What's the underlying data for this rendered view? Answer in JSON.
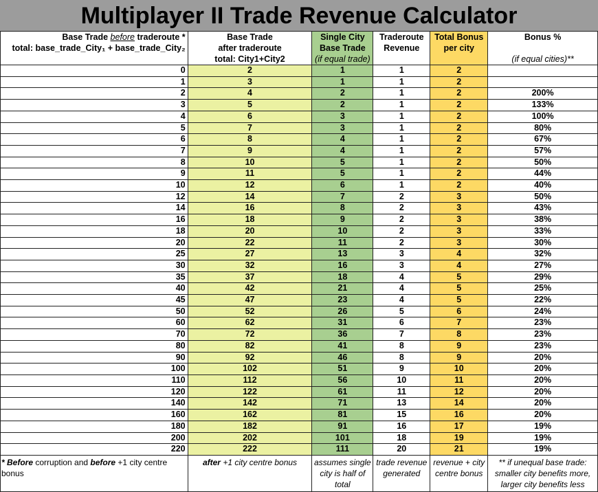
{
  "title": "Multiplayer II Trade Revenue Calculator",
  "headers": {
    "base_before": {
      "pre": "Base Trade ",
      "em": "before",
      "post": " traderoute *",
      "line2": "total: base_trade_City₁ + base_trade_City₂"
    },
    "base_after": {
      "line1": "Base Trade",
      "line2": "after traderoute",
      "line3": "total: City1+City2"
    },
    "single_city": {
      "line1": "Single City",
      "line2": "Base Trade",
      "line3": "(if equal trade)"
    },
    "traderoute_revenue": {
      "line1": "Traderoute",
      "line2": "Revenue"
    },
    "total_bonus": {
      "line1": "Total Bonus",
      "line2": "per city"
    },
    "bonus_pct": {
      "line1": "Bonus %",
      "line2": "(if equal cities)**"
    }
  },
  "rows": [
    [
      "0",
      "2",
      "1",
      "1",
      "2",
      ""
    ],
    [
      "1",
      "3",
      "1",
      "1",
      "2",
      ""
    ],
    [
      "2",
      "4",
      "2",
      "1",
      "2",
      "200%"
    ],
    [
      "3",
      "5",
      "2",
      "1",
      "2",
      "133%"
    ],
    [
      "4",
      "6",
      "3",
      "1",
      "2",
      "100%"
    ],
    [
      "5",
      "7",
      "3",
      "1",
      "2",
      "80%"
    ],
    [
      "6",
      "8",
      "4",
      "1",
      "2",
      "67%"
    ],
    [
      "7",
      "9",
      "4",
      "1",
      "2",
      "57%"
    ],
    [
      "8",
      "10",
      "5",
      "1",
      "2",
      "50%"
    ],
    [
      "9",
      "11",
      "5",
      "1",
      "2",
      "44%"
    ],
    [
      "10",
      "12",
      "6",
      "1",
      "2",
      "40%"
    ],
    [
      "12",
      "14",
      "7",
      "2",
      "3",
      "50%"
    ],
    [
      "14",
      "16",
      "8",
      "2",
      "3",
      "43%"
    ],
    [
      "16",
      "18",
      "9",
      "2",
      "3",
      "38%"
    ],
    [
      "18",
      "20",
      "10",
      "2",
      "3",
      "33%"
    ],
    [
      "20",
      "22",
      "11",
      "2",
      "3",
      "30%"
    ],
    [
      "25",
      "27",
      "13",
      "3",
      "4",
      "32%"
    ],
    [
      "30",
      "32",
      "16",
      "3",
      "4",
      "27%"
    ],
    [
      "35",
      "37",
      "18",
      "4",
      "5",
      "29%"
    ],
    [
      "40",
      "42",
      "21",
      "4",
      "5",
      "25%"
    ],
    [
      "45",
      "47",
      "23",
      "4",
      "5",
      "22%"
    ],
    [
      "50",
      "52",
      "26",
      "5",
      "6",
      "24%"
    ],
    [
      "60",
      "62",
      "31",
      "6",
      "7",
      "23%"
    ],
    [
      "70",
      "72",
      "36",
      "7",
      "8",
      "23%"
    ],
    [
      "80",
      "82",
      "41",
      "8",
      "9",
      "23%"
    ],
    [
      "90",
      "92",
      "46",
      "8",
      "9",
      "20%"
    ],
    [
      "100",
      "102",
      "51",
      "9",
      "10",
      "20%"
    ],
    [
      "110",
      "112",
      "56",
      "10",
      "11",
      "20%"
    ],
    [
      "120",
      "122",
      "61",
      "11",
      "12",
      "20%"
    ],
    [
      "140",
      "142",
      "71",
      "13",
      "14",
      "20%"
    ],
    [
      "160",
      "162",
      "81",
      "15",
      "16",
      "20%"
    ],
    [
      "180",
      "182",
      "91",
      "16",
      "17",
      "19%"
    ],
    [
      "200",
      "202",
      "101",
      "18",
      "19",
      "19%"
    ],
    [
      "220",
      "222",
      "111",
      "20",
      "21",
      "19%"
    ]
  ],
  "footer": {
    "base_before": {
      "b1": "* Before",
      "t1": " corruption and ",
      "b2": "before",
      "t2": " +1 city centre bonus"
    },
    "base_after": {
      "b1": "after",
      "t1": " +1 city centre bonus"
    },
    "single_city": "assumes single city is half of total",
    "traderoute_revenue": "trade revenue generated",
    "total_bonus": "revenue + city centre bonus",
    "bonus_pct": "** if unequal base trade: smaller city benefits more, larger city benefits less"
  },
  "colors": {
    "title_bg": "#9c9c9c",
    "after_col": "#ebf1a2",
    "single_col": "#a8cf90",
    "bonus_col": "#fdd964"
  }
}
